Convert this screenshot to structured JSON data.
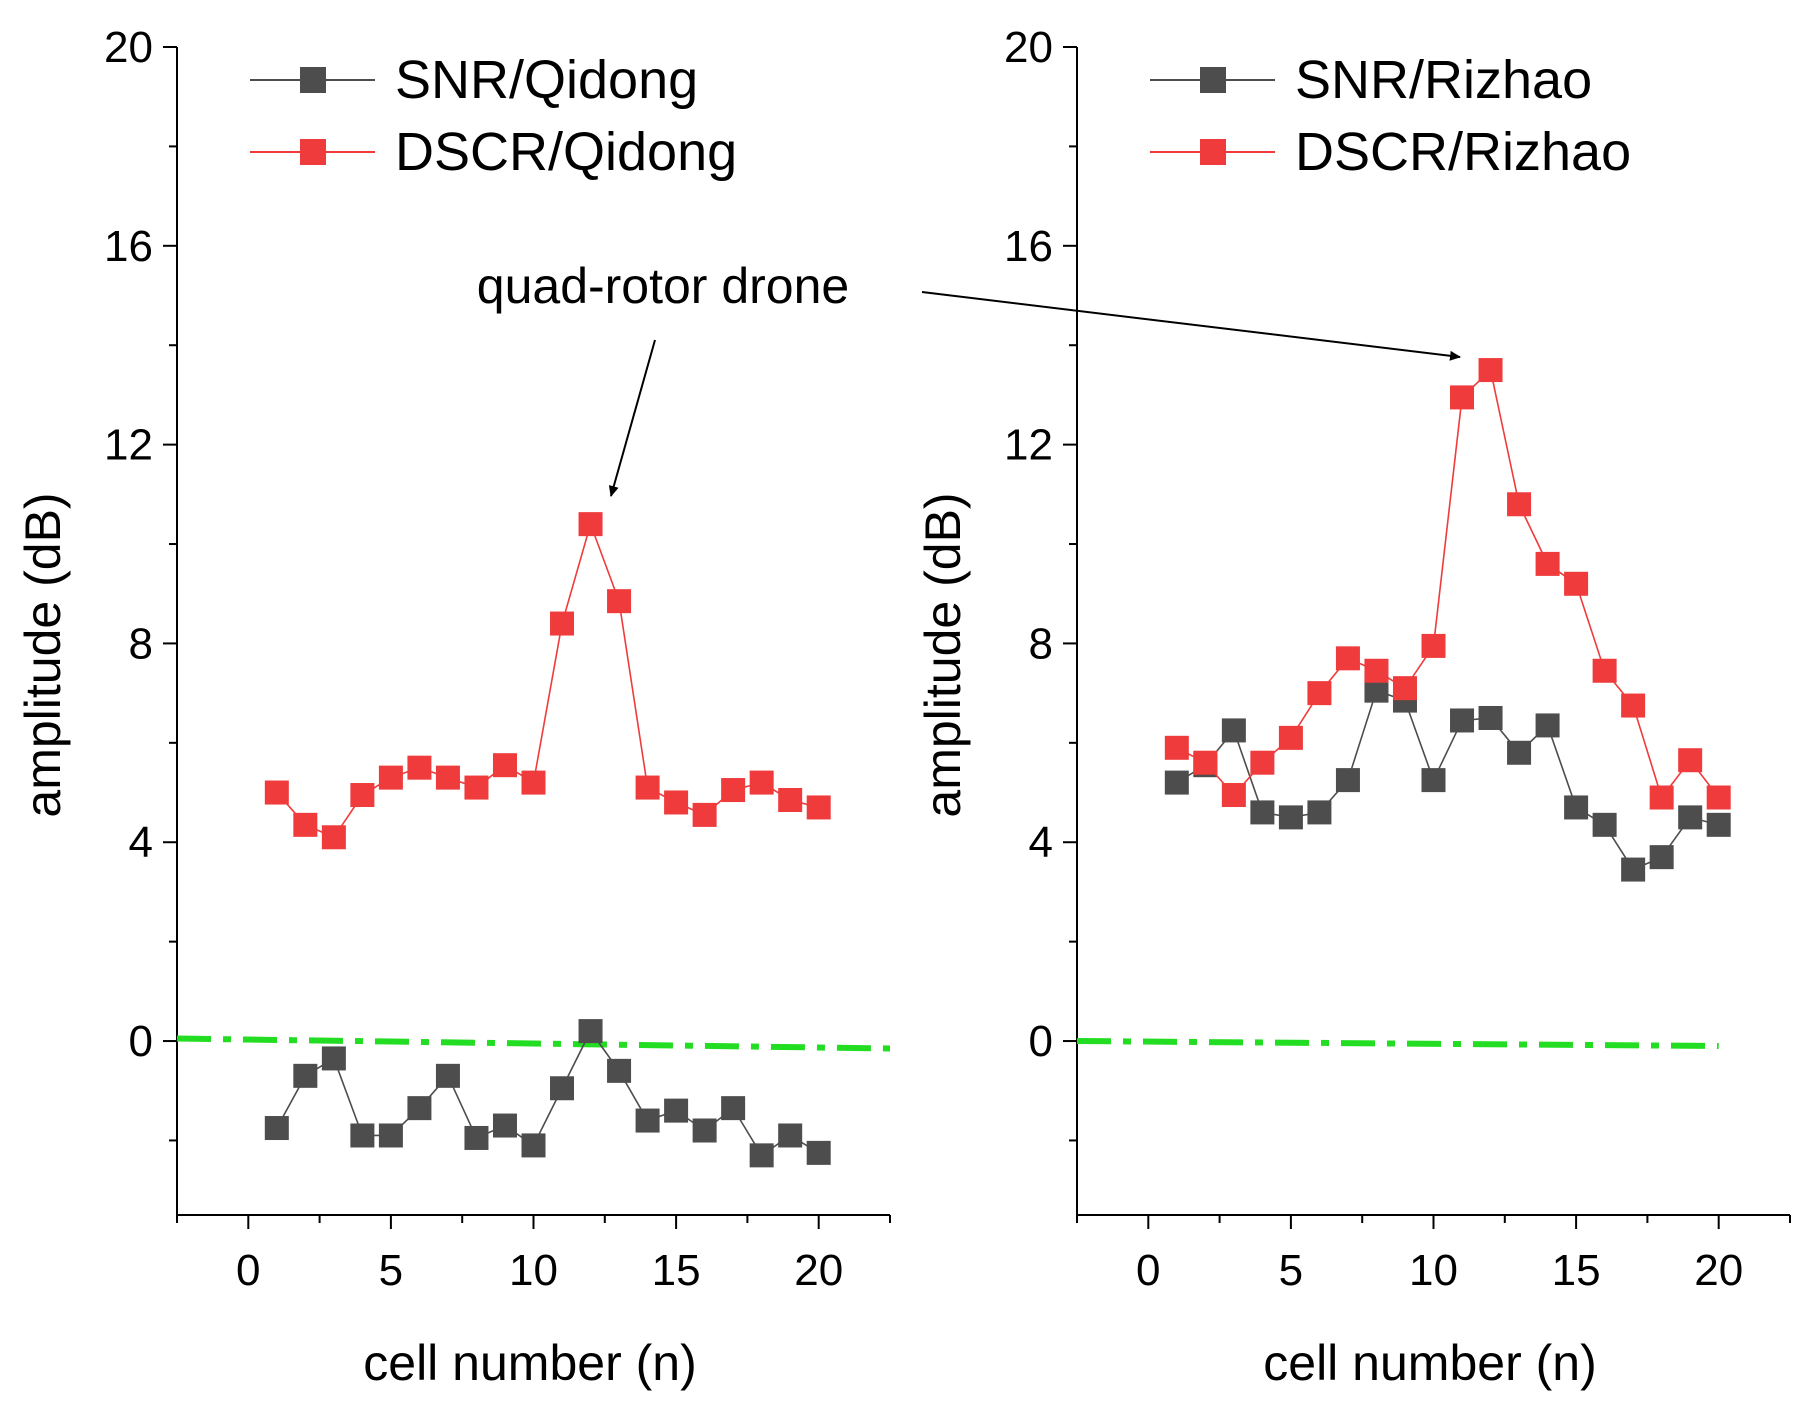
{
  "colors": {
    "snr": "#4d4d4d",
    "dscr": "#ef3b3b",
    "threshold": "#22dd22",
    "axis": "#000000"
  },
  "annotation": {
    "text": "quad-rotor drone"
  },
  "chart_data": [
    {
      "type": "line",
      "name": "Qidong",
      "xlabel": "cell number (n)",
      "ylabel": "amplitude (dB)",
      "xlim": [
        -2.5,
        22.5
      ],
      "ylim": [
        -3.5,
        20
      ],
      "xticks": [
        0,
        5,
        10,
        15,
        20
      ],
      "xtick_labels": [
        "0",
        "5",
        "10",
        "15",
        "20"
      ],
      "yticks": [
        0,
        4,
        8,
        12,
        16,
        20
      ],
      "ytick_labels": [
        "0",
        "4",
        "8",
        "12",
        "16",
        "20"
      ],
      "legend_position": "top-left",
      "x": [
        1,
        2,
        3,
        4,
        5,
        6,
        7,
        8,
        9,
        10,
        11,
        12,
        13,
        14,
        15,
        16,
        17,
        18,
        19,
        20
      ],
      "series": [
        {
          "name": "SNR/Qidong",
          "color_key": "snr",
          "values": [
            -1.75,
            -0.7,
            -0.35,
            -1.9,
            -1.9,
            -1.35,
            -0.7,
            -1.95,
            -1.7,
            -2.1,
            -0.95,
            0.2,
            -0.6,
            -1.6,
            -1.4,
            -1.8,
            -1.35,
            -2.3,
            -1.9,
            -2.25
          ]
        },
        {
          "name": "DSCR/Qidong",
          "color_key": "dscr",
          "values": [
            5.0,
            4.35,
            4.1,
            4.95,
            5.3,
            5.5,
            5.3,
            5.1,
            5.55,
            5.2,
            8.4,
            10.4,
            8.85,
            5.1,
            4.8,
            4.55,
            5.05,
            5.2,
            4.85,
            4.7
          ]
        }
      ],
      "threshold_line": {
        "x": [
          -2.5,
          22.5
        ],
        "y": [
          0.05,
          -0.15
        ]
      }
    },
    {
      "type": "line",
      "name": "Rizhao",
      "xlabel": "cell number (n)",
      "ylabel": "amplitude (dB)",
      "xlim": [
        -2.5,
        22.5
      ],
      "ylim": [
        -3.5,
        20
      ],
      "xticks": [
        0,
        5,
        10,
        15,
        20
      ],
      "xtick_labels": [
        "0",
        "5",
        "10",
        "15",
        "20"
      ],
      "yticks": [
        0,
        4,
        8,
        12,
        16,
        20
      ],
      "ytick_labels": [
        "0",
        "4",
        "8",
        "12",
        "16",
        "20"
      ],
      "legend_position": "top-left",
      "x": [
        1,
        2,
        3,
        4,
        5,
        6,
        7,
        8,
        9,
        10,
        11,
        12,
        13,
        14,
        15,
        16,
        17,
        18,
        19,
        20
      ],
      "series": [
        {
          "name": "SNR/Rizhao",
          "color_key": "snr",
          "values": [
            5.2,
            5.55,
            6.25,
            4.6,
            4.5,
            4.6,
            5.25,
            7.05,
            6.85,
            5.25,
            6.45,
            6.5,
            5.8,
            6.35,
            4.7,
            4.35,
            3.45,
            3.7,
            4.5,
            4.35
          ]
        },
        {
          "name": "DSCR/Rizhao",
          "color_key": "dscr",
          "values": [
            5.9,
            5.6,
            4.95,
            5.6,
            6.1,
            7.0,
            7.7,
            7.45,
            7.1,
            7.95,
            12.95,
            13.5,
            10.8,
            9.6,
            9.2,
            7.45,
            6.75,
            4.9,
            5.65,
            4.9
          ]
        }
      ],
      "threshold_line": {
        "x": [
          -2.5,
          20
        ],
        "y": [
          0.0,
          -0.1
        ]
      }
    }
  ]
}
